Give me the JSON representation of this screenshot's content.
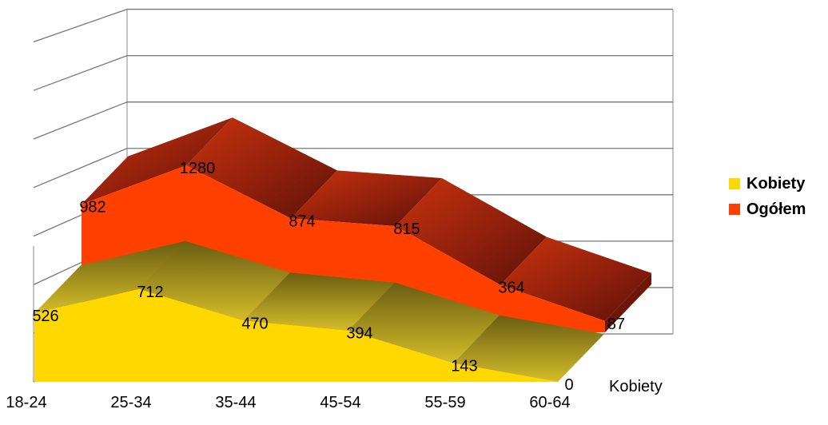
{
  "chart_data": {
    "type": "area",
    "categories": [
      "18-24",
      "25-34",
      "35-44",
      "45-54",
      "55-59",
      "60-64"
    ],
    "series": [
      {
        "name": "Kobiety",
        "values": [
          526,
          712,
          470,
          394,
          143,
          0
        ],
        "color": "#FFD800"
      },
      {
        "name": "Ogółem",
        "values": [
          982,
          1280,
          874,
          815,
          364,
          87
        ],
        "color": "#FF4000"
      }
    ],
    "depth_axis_label": "Kobiety",
    "ylim": [
      0,
      1400
    ],
    "grid": true,
    "legend_position": "right",
    "three_d": true
  }
}
